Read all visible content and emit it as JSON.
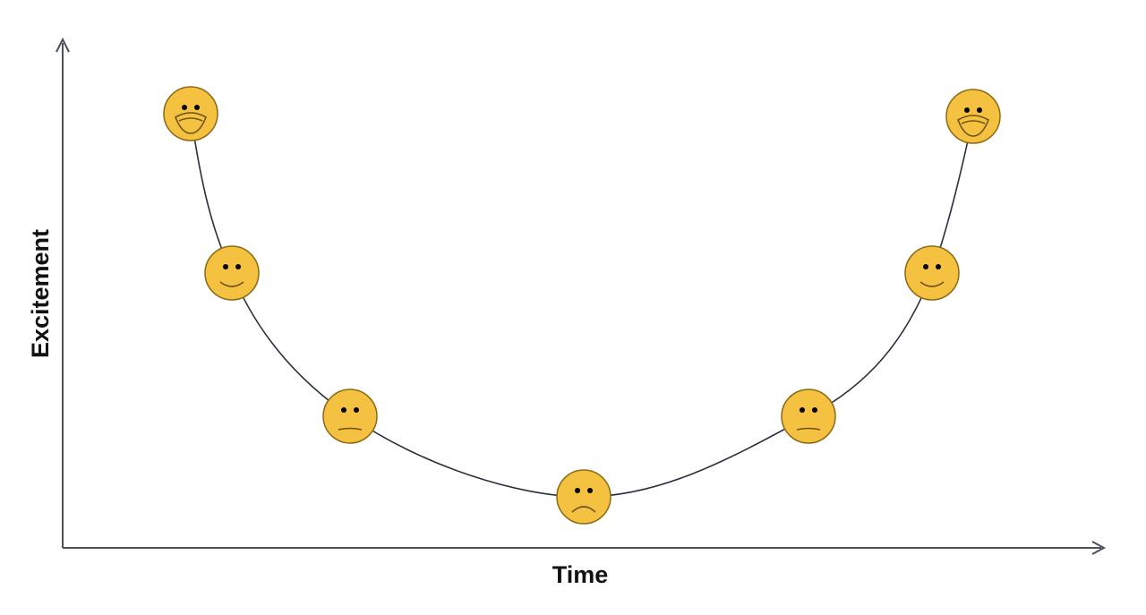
{
  "axes": {
    "x_label": "Time",
    "y_label": "Excitement"
  }
}
